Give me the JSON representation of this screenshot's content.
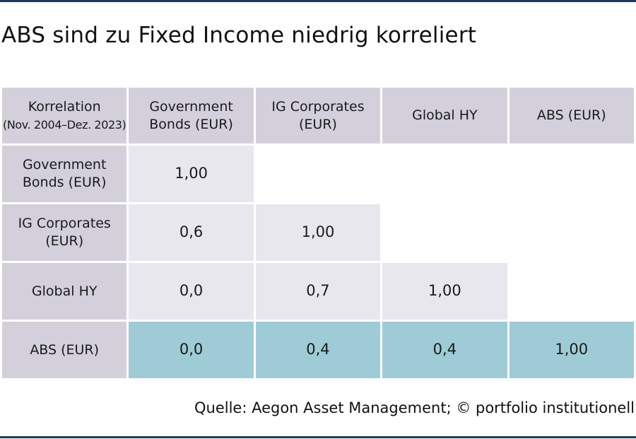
{
  "title": "ABS sind zu Fixed Income niedrig korreliert",
  "source": "Quelle: Aegon Asset Management; © portfolio institutionell",
  "colors": {
    "rule": "#1f3a5a",
    "header_cell": "#d3d0dc",
    "body_cell": "#e8e7ee",
    "abs_row": "#9ecbd6"
  },
  "chart_data": {
    "type": "table",
    "corner": {
      "line1": "Korrelation",
      "line2": "(Nov. 2004–Dez. 2023)"
    },
    "columns": [
      {
        "line1": "Government",
        "line2": "Bonds (EUR)"
      },
      {
        "line1": "IG Corporates",
        "line2": "(EUR)"
      },
      {
        "line1": "Global HY",
        "line2": ""
      },
      {
        "line1": "ABS (EUR)",
        "line2": ""
      }
    ],
    "rows": [
      {
        "line1": "Government",
        "line2": "Bonds (EUR)",
        "values": [
          "1,00",
          "",
          "",
          ""
        ]
      },
      {
        "line1": "IG Corporates",
        "line2": "(EUR)",
        "values": [
          "0,6",
          "1,00",
          "",
          ""
        ]
      },
      {
        "line1": "Global HY",
        "line2": "",
        "values": [
          "0,0",
          "0,7",
          "1,00",
          ""
        ]
      },
      {
        "line1": "ABS (EUR)",
        "line2": "",
        "values": [
          "0,0",
          "0,4",
          "0,4",
          "1,00"
        ]
      }
    ]
  }
}
